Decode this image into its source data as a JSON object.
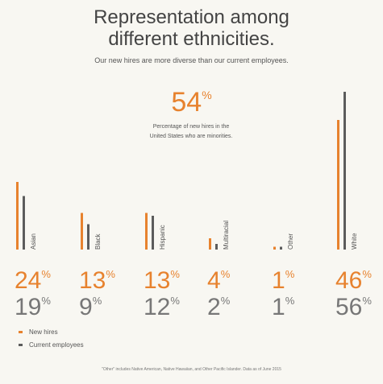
{
  "header": {
    "title_line1": "Representation among",
    "title_line2": "different ethnicities.",
    "subtitle": "Our new hires are more diverse than our current employees."
  },
  "highlight": {
    "value": "54",
    "unit": "%",
    "caption_line1": "Percentage of new hires in the",
    "caption_line2": "United States who are minorities."
  },
  "legend": {
    "new_hires": "New hires",
    "current_employees": "Current employees"
  },
  "footnote": "\"Other\" includes Native American, Native Hawaiian, and Other Pacific Islander. Data as of June 2015",
  "colors": {
    "new_hires": "#e7822e",
    "current_employees": "#5c5c5c"
  },
  "chart_data": {
    "type": "bar",
    "categories": [
      "Asian",
      "Black",
      "Hispanic",
      "Multiracial",
      "Other",
      "White"
    ],
    "series": [
      {
        "name": "New hires",
        "values": [
          24,
          13,
          13,
          4,
          1,
          46
        ]
      },
      {
        "name": "Current employees",
        "values": [
          19,
          9,
          12,
          2,
          1,
          56
        ]
      }
    ],
    "unit": "%"
  }
}
